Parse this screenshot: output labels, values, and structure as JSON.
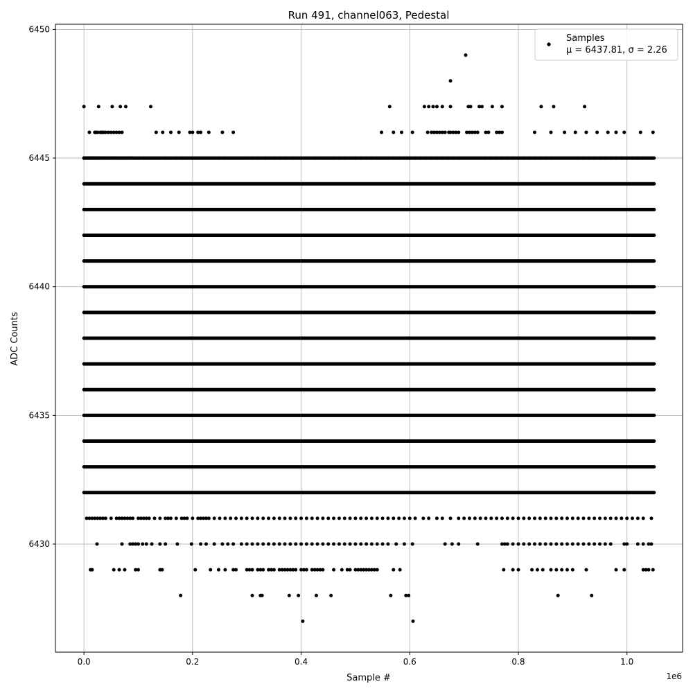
{
  "chart_data": {
    "type": "scatter",
    "title": "Run 491, channel063, Pedestal",
    "xlabel": "Sample #",
    "ylabel": "ADC Counts",
    "x_offset_label": "1e6",
    "xlim": [
      -52500,
      1102500
    ],
    "ylim": [
      6425.8,
      6450.2
    ],
    "x_ticks": [
      0,
      200000,
      400000,
      600000,
      800000,
      1000000
    ],
    "x_tick_labels": [
      "0.0",
      "0.2",
      "0.4",
      "0.6",
      "0.8",
      "1.0"
    ],
    "y_ticks": [
      6430,
      6435,
      6440,
      6445,
      6450
    ],
    "y_tick_labels": [
      "6430",
      "6435",
      "6440",
      "6445",
      "6450"
    ],
    "grid": true,
    "legend_position": "top-right",
    "marker_color": "#000000",
    "series": [
      {
        "name": "Samples",
        "stats_label": "μ = 6437.81, σ = 2.26",
        "mean": 6437.81,
        "std": 2.26,
        "n_samples": 1050000,
        "dense_levels": [
          6432,
          6433,
          6434,
          6435,
          6436,
          6437,
          6438,
          6439,
          6440,
          6441,
          6442,
          6443,
          6444,
          6445
        ],
        "sparse_levels": [
          {
            "y": 6445,
            "x": [
              0,
              2000,
              4000,
              6000,
              8000,
              10000,
              12000,
              14000,
              16000,
              18000,
              20000,
              22000,
              25000,
              28000,
              30000,
              33000,
              36000,
              40000,
              44000,
              48000,
              52000,
              55000,
              58000,
              62000,
              66000,
              70000,
              74000,
              78000,
              82000,
              86000,
              90000,
              95000,
              100000,
              110000,
              115000,
              120000,
              125000,
              130000,
              135000,
              140000,
              150000,
              155000,
              160000,
              170000,
              180000,
              185000,
              190000,
              200000,
              205000,
              210000,
              220000,
              230000,
              240000,
              250000,
              260000,
              265000,
              270000,
              275000,
              280000,
              285000,
              290000,
              310000,
              320000,
              335000,
              350000,
              360000,
              370000,
              385000,
              400000,
              425000,
              440000,
              445000,
              450000,
              455000,
              460000,
              470000,
              480000,
              495000,
              500000,
              510000,
              520000,
              530000,
              540000,
              545000,
              550000,
              555000,
              560000,
              570000,
              575000,
              580000,
              590000,
              595000,
              600000,
              610000,
              620000,
              630000,
              640000,
              650000,
              660000,
              670000,
              680000,
              690000,
              700000,
              710000,
              720000,
              730000,
              740000,
              750000,
              760000,
              770000,
              780000,
              790000,
              800000,
              810000,
              820000,
              830000,
              840000,
              850000,
              860000,
              870000,
              880000,
              890000,
              900000,
              910000,
              920000,
              930000,
              940000,
              950000,
              960000,
              970000,
              980000,
              990000,
              1000000,
              1010000,
              1020000,
              1030000,
              1045000
            ]
          },
          {
            "y": 6446,
            "x": [
              10000,
              20000,
              22000,
              25000,
              30000,
              33000,
              36000,
              40000,
              45000,
              50000,
              55000,
              60000,
              65000,
              70000,
              133000,
              145000,
              160000,
              175000,
              195000,
              200000,
              210000,
              215000,
              230000,
              255000,
              275000,
              548000,
              570000,
              585000,
              605000,
              633000,
              640000,
              645000,
              650000,
              655000,
              660000,
              665000,
              672000,
              675000,
              680000,
              685000,
              690000,
              705000,
              710000,
              715000,
              720000,
              725000,
              740000,
              745000,
              760000,
              765000,
              770000,
              830000,
              860000,
              885000,
              905000,
              925000,
              945000,
              965000,
              980000,
              995000,
              1025000,
              1048000
            ]
          },
          {
            "y": 6447,
            "x": [
              0,
              27000,
              52000,
              67000,
              77000,
              123000,
              563000,
              627000,
              635000,
              643000,
              650000,
              660000,
              675000,
              708000,
              712000,
              728000,
              733000,
              752000,
              770000,
              842000,
              865000,
              922000
            ]
          },
          {
            "y": 6448,
            "x": [
              675000
            ]
          },
          {
            "y": 6449,
            "x": [
              703000
            ]
          },
          {
            "y": 6431,
            "x": [
              5000,
              10000,
              15000,
              20000,
              25000,
              30000,
              35000,
              40000,
              50000,
              60000,
              65000,
              70000,
              75000,
              80000,
              85000,
              90000,
              100000,
              105000,
              110000,
              115000,
              120000,
              130000,
              140000,
              150000,
              155000,
              160000,
              170000,
              180000,
              185000,
              190000,
              200000,
              210000,
              215000,
              220000,
              225000,
              230000,
              240000,
              250000,
              260000,
              270000,
              280000,
              290000,
              300000,
              310000,
              320000,
              330000,
              340000,
              350000,
              360000,
              370000,
              380000,
              390000,
              400000,
              410000,
              420000,
              430000,
              440000,
              450000,
              460000,
              470000,
              480000,
              490000,
              500000,
              510000,
              520000,
              530000,
              540000,
              550000,
              560000,
              570000,
              580000,
              590000,
              600000,
              610000,
              625000,
              635000,
              650000,
              660000,
              675000,
              690000,
              700000,
              710000,
              720000,
              730000,
              740000,
              750000,
              760000,
              770000,
              780000,
              790000,
              800000,
              810000,
              820000,
              830000,
              840000,
              850000,
              860000,
              870000,
              880000,
              890000,
              900000,
              910000,
              920000,
              930000,
              940000,
              950000,
              960000,
              970000,
              980000,
              990000,
              1000000,
              1010000,
              1020000,
              1030000,
              1045000
            ]
          },
          {
            "y": 6430,
            "x": [
              24000,
              70000,
              85000,
              90000,
              95000,
              100000,
              108000,
              115000,
              125000,
              140000,
              150000,
              172000,
              198000,
              215000,
              225000,
              240000,
              255000,
              265000,
              275000,
              290000,
              300000,
              310000,
              320000,
              330000,
              340000,
              350000,
              360000,
              370000,
              380000,
              390000,
              400000,
              410000,
              420000,
              430000,
              440000,
              450000,
              460000,
              470000,
              480000,
              490000,
              500000,
              510000,
              520000,
              530000,
              540000,
              550000,
              560000,
              575000,
              590000,
              605000,
              665000,
              678000,
              690000,
              725000,
              770000,
              775000,
              780000,
              790000,
              800000,
              810000,
              820000,
              830000,
              840000,
              850000,
              860000,
              870000,
              880000,
              890000,
              900000,
              910000,
              920000,
              930000,
              940000,
              950000,
              960000,
              970000,
              995000,
              1000000,
              1020000,
              1030000,
              1040000,
              1045000
            ]
          },
          {
            "y": 6429,
            "x": [
              12000,
              15000,
              55000,
              65000,
              75000,
              95000,
              100000,
              140000,
              144000,
              205000,
              233000,
              248000,
              260000,
              275000,
              280000,
              300000,
              305000,
              310000,
              320000,
              325000,
              330000,
              340000,
              345000,
              350000,
              360000,
              365000,
              370000,
              375000,
              380000,
              385000,
              390000,
              400000,
              405000,
              410000,
              420000,
              425000,
              430000,
              435000,
              440000,
              460000,
              475000,
              485000,
              490000,
              500000,
              505000,
              510000,
              515000,
              520000,
              525000,
              530000,
              535000,
              540000,
              570000,
              582000,
              773000,
              790000,
              800000,
              825000,
              835000,
              845000,
              860000,
              870000,
              880000,
              890000,
              900000,
              925000,
              980000,
              995000,
              1030000,
              1035000,
              1040000,
              1048000
            ]
          },
          {
            "y": 6428,
            "x": [
              178000,
              310000,
              325000,
              328000,
              378000,
              395000,
              428000,
              455000,
              565000,
              593000,
              598000,
              873000,
              935000
            ]
          },
          {
            "y": 6427,
            "x": [
              403000,
              606000
            ]
          }
        ]
      }
    ]
  }
}
